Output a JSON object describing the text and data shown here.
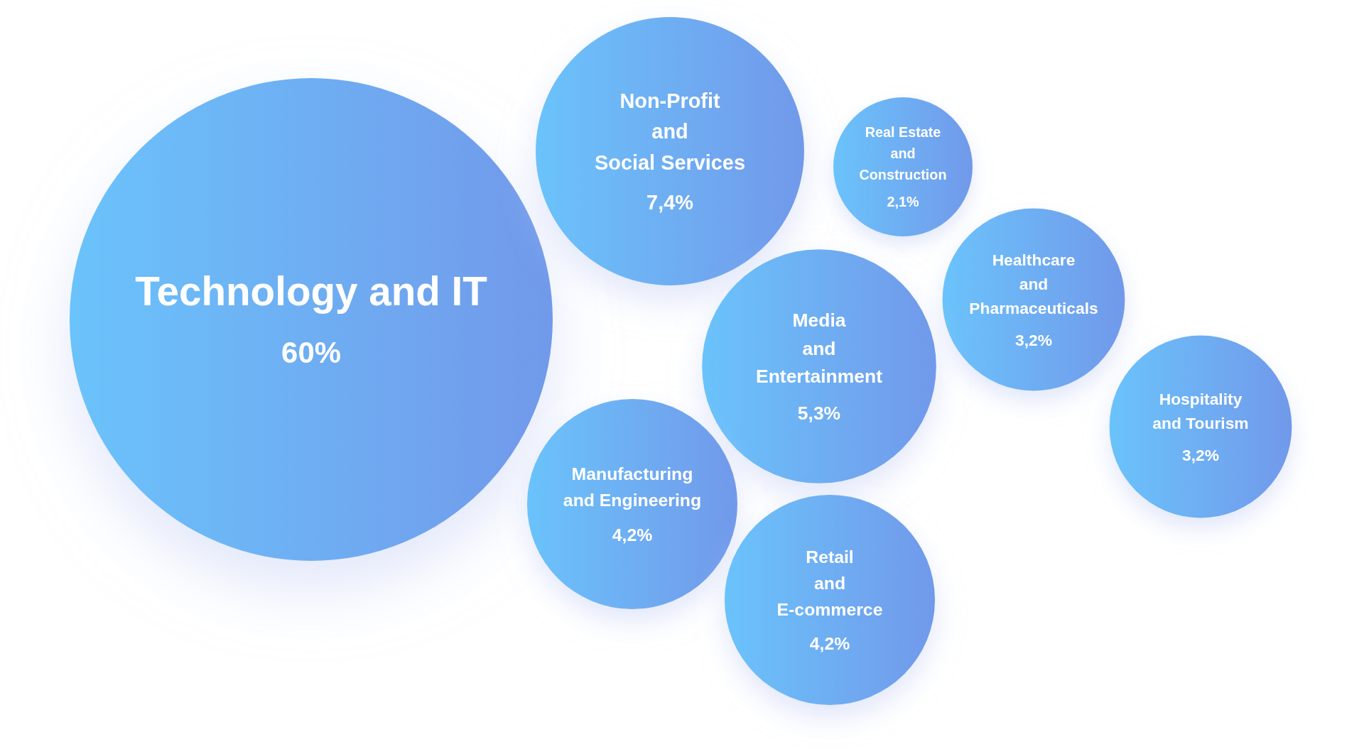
{
  "chart_data": {
    "type": "other",
    "categories": [
      "Technology and IT",
      "Non-Profit\nand\nSocial Services",
      "Real Estate\nand\nConstruction",
      "Healthcare\nand\nPharmaceuticals",
      "Media\nand\nEntertainment",
      "Hospitality\nand Tourism",
      "Manufacturing\nand Engineering",
      "Retail\nand\nE-commerce"
    ],
    "values": [
      60,
      7.4,
      2.1,
      3.2,
      5.3,
      3.2,
      4.2,
      4.2
    ],
    "value_labels": [
      "60%",
      "7,4%",
      "2,1%",
      "3,2%",
      "5,3%",
      "3,2%",
      "4,2%",
      "4,2%"
    ],
    "color": "#6eaef3"
  }
}
